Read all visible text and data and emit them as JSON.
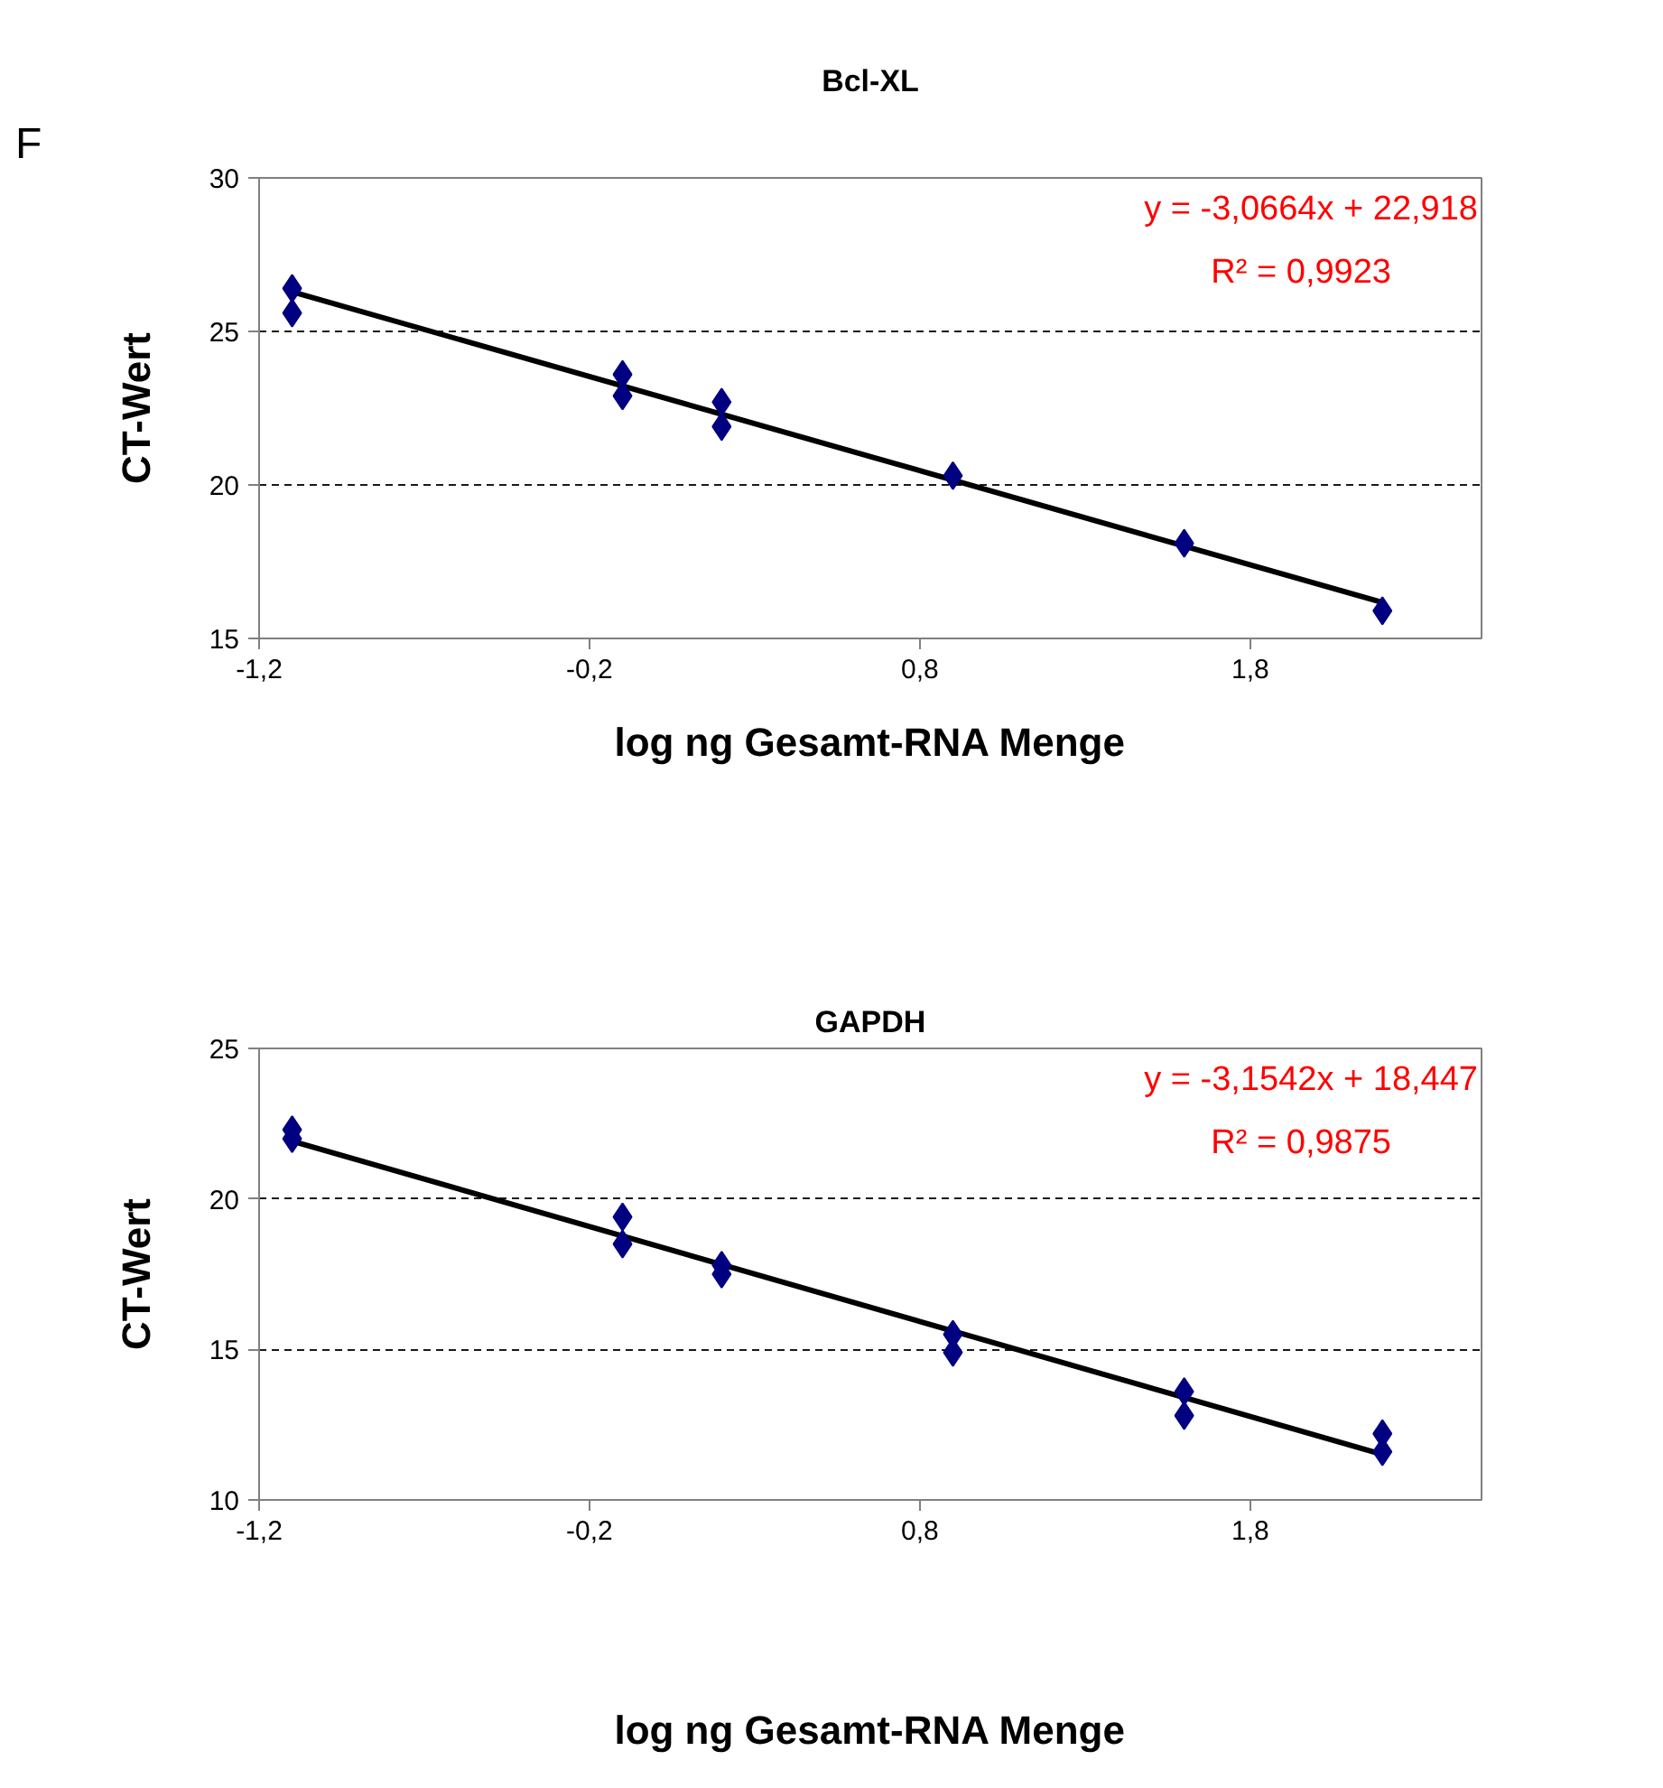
{
  "chart_data": [
    {
      "type": "scatter",
      "title": "Bcl-XL",
      "xlabel": "log ng Gesamt-RNA Menge",
      "ylabel": "CT-Wert",
      "annotations": [
        "F",
        "y = -3,0664x + 22,918",
        "R² = 0,9923"
      ],
      "xlim": [
        -1.2,
        2.5
      ],
      "ylim": [
        15,
        30
      ],
      "xticks": [
        {
          "value": -1.2,
          "label": "-1,2"
        },
        {
          "value": -0.2,
          "label": "-0,2"
        },
        {
          "value": 0.8,
          "label": "0,8"
        },
        {
          "value": 1.8,
          "label": "1,8"
        }
      ],
      "yticks": [
        15,
        20,
        25,
        30
      ],
      "grid": "y",
      "series": [
        {
          "marker": "diamond",
          "color": "#000080",
          "x": [
            -1.1,
            -1.1,
            -0.1,
            -0.1,
            0.2,
            0.2,
            0.9,
            1.6,
            2.2
          ],
          "values": [
            26.4,
            25.6,
            23.6,
            22.9,
            22.7,
            21.9,
            20.3,
            18.1,
            15.9
          ]
        },
        {
          "type": "line",
          "marker": "none",
          "color": "#000000",
          "x": [
            -1.1,
            2.2
          ],
          "values": [
            26.29,
            16.17
          ]
        }
      ]
    },
    {
      "type": "scatter",
      "title": "GAPDH",
      "xlabel": "log ng Gesamt-RNA Menge",
      "ylabel": "CT-Wert",
      "annotations": [
        "y = -3,1542x + 18,447",
        "R² = 0,9875"
      ],
      "xlim": [
        -1.2,
        2.5
      ],
      "ylim": [
        10,
        25
      ],
      "xticks": [
        {
          "value": -1.2,
          "label": "-1,2"
        },
        {
          "value": -0.2,
          "label": "-0,2"
        },
        {
          "value": 0.8,
          "label": "0,8"
        },
        {
          "value": 1.8,
          "label": "1,8"
        }
      ],
      "yticks": [
        10,
        15,
        20,
        25
      ],
      "grid": "y",
      "series": [
        {
          "marker": "diamond",
          "color": "#000080",
          "x": [
            -1.1,
            -1.1,
            -0.1,
            -0.1,
            0.2,
            0.2,
            0.9,
            0.9,
            1.6,
            1.6,
            2.2,
            2.2
          ],
          "values": [
            22.3,
            22.0,
            19.4,
            18.5,
            17.8,
            17.5,
            15.5,
            14.9,
            13.6,
            12.8,
            12.2,
            11.6
          ]
        },
        {
          "type": "line",
          "marker": "none",
          "color": "#000000",
          "x": [
            -1.1,
            2.2
          ],
          "values": [
            21.92,
            11.51
          ]
        }
      ]
    }
  ]
}
